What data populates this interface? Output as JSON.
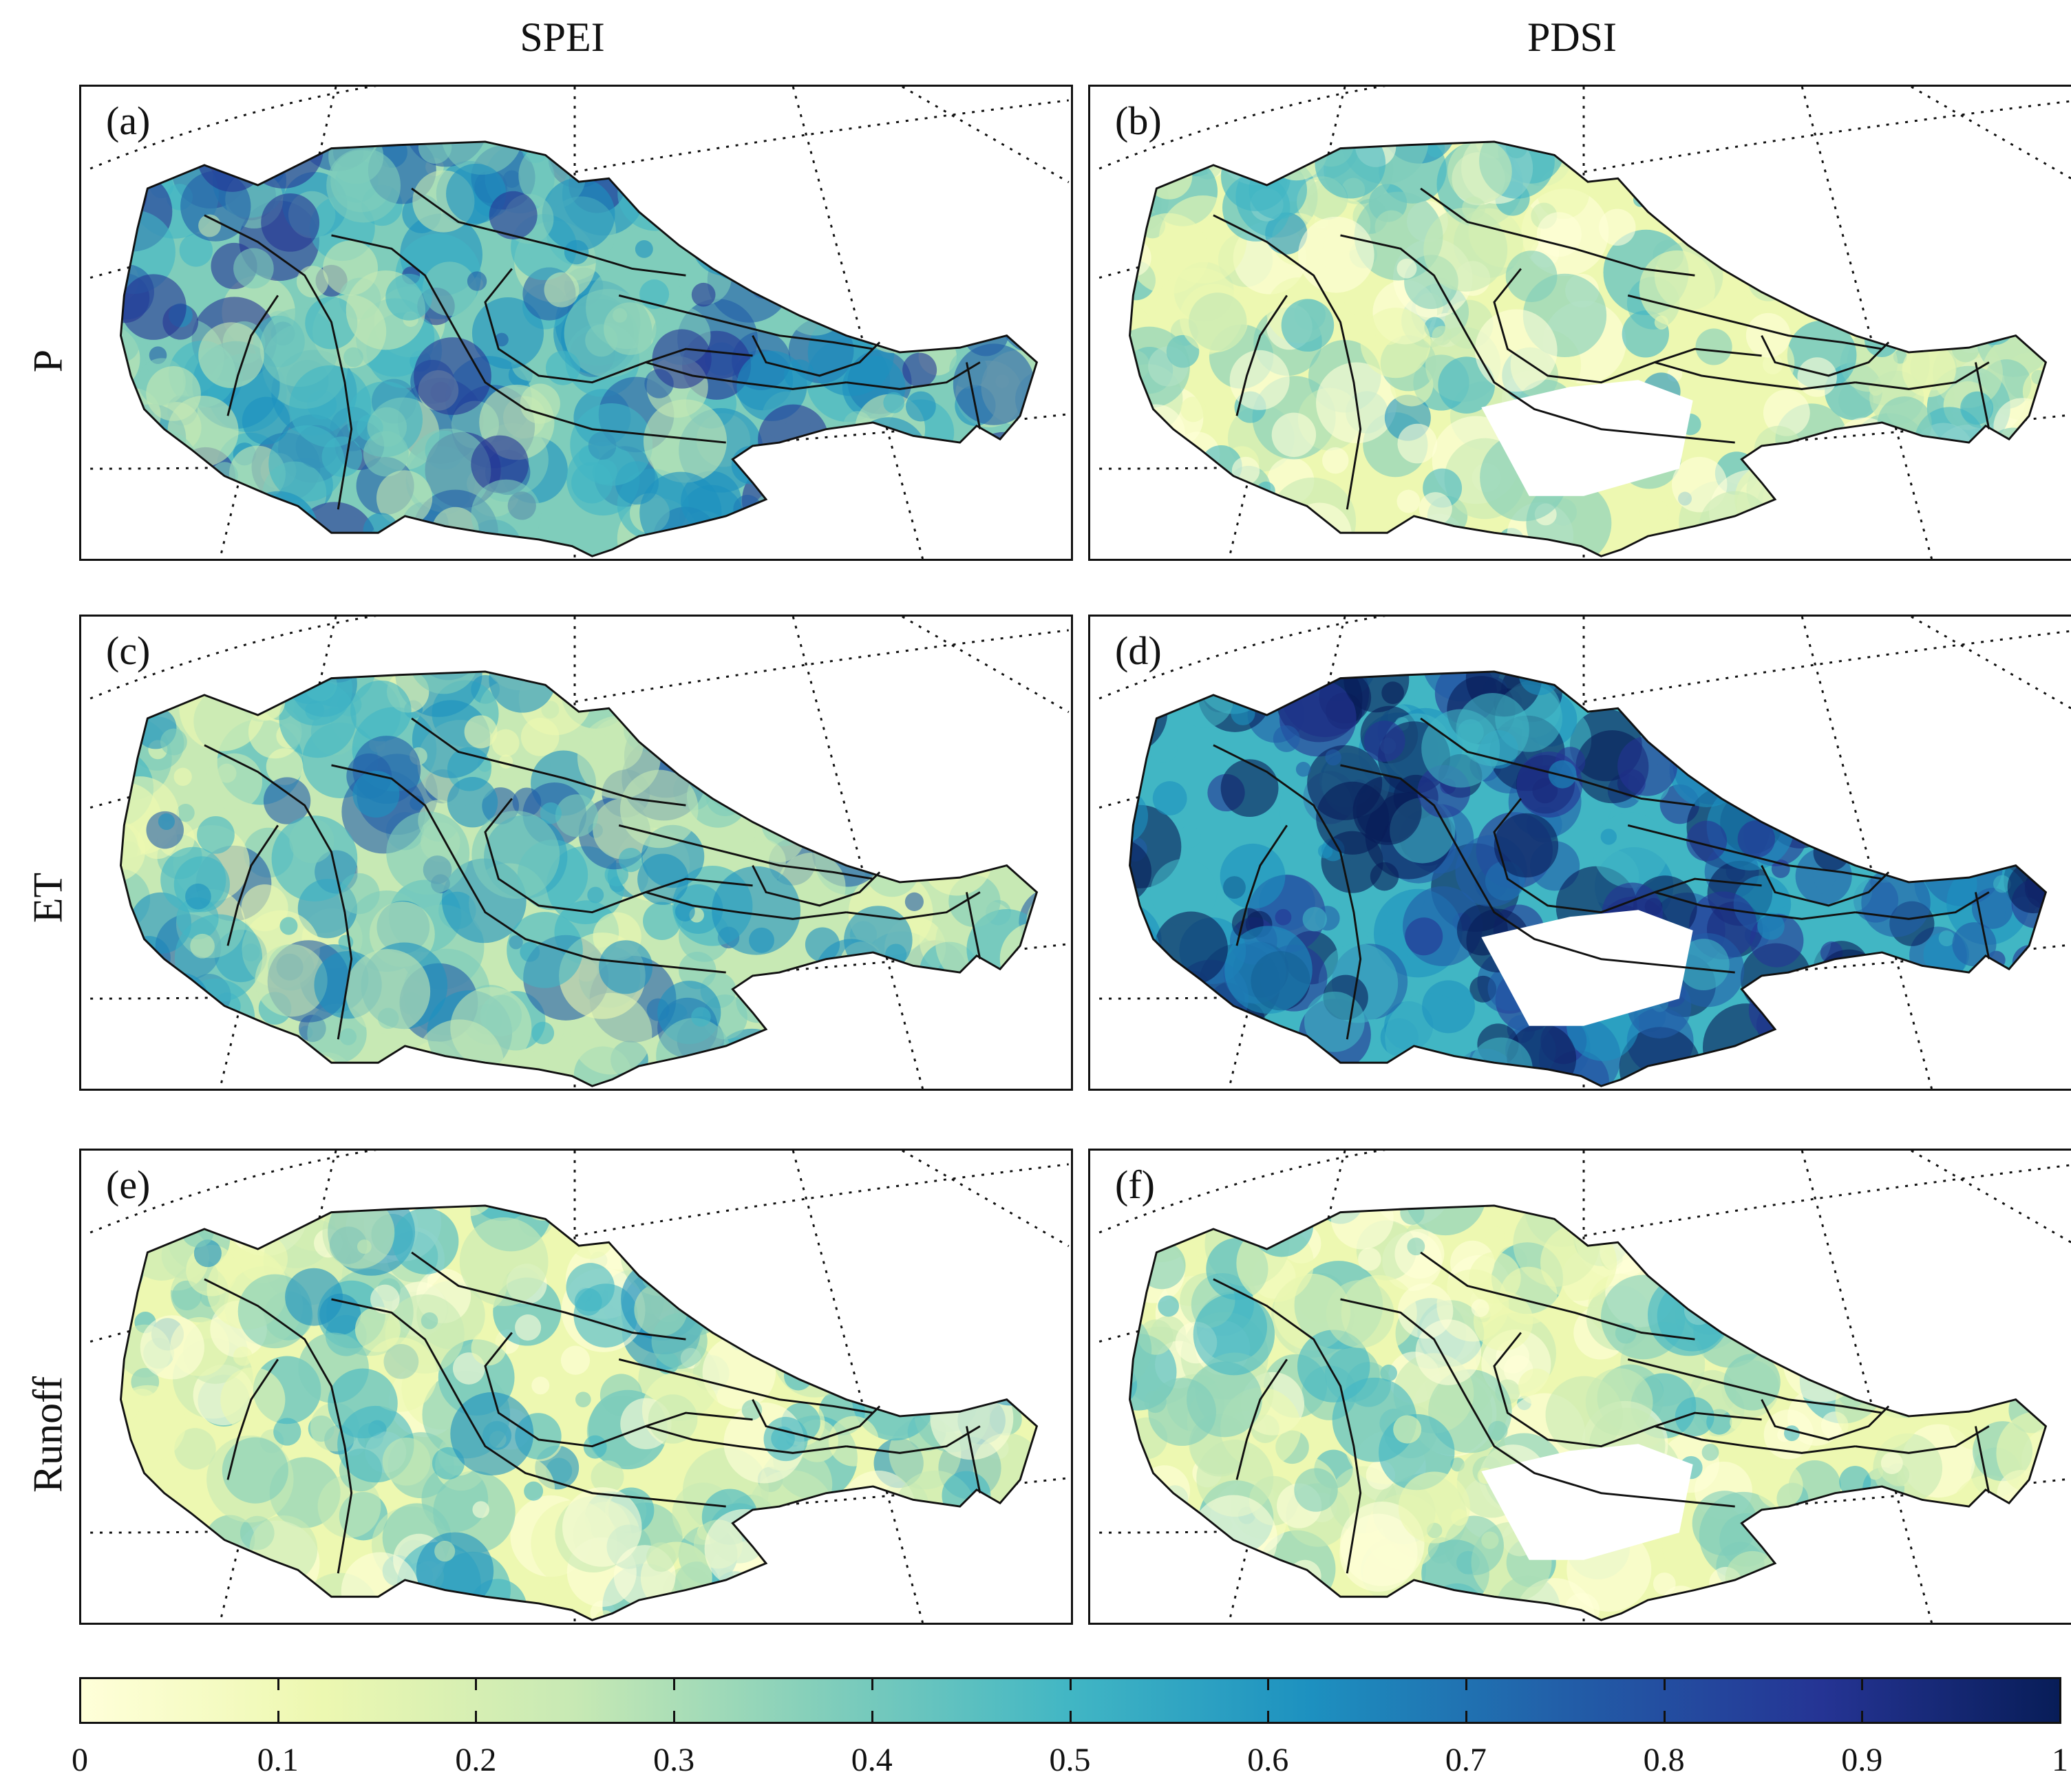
{
  "columns": [
    "SPEI",
    "PDSI"
  ],
  "rows": [
    "P",
    "ET",
    "Runoff"
  ],
  "panels": [
    {
      "label": "(a)",
      "column": "SPEI",
      "row": "P",
      "intensity": 0.55
    },
    {
      "label": "(b)",
      "column": "PDSI",
      "row": "P",
      "intensity": 0.22
    },
    {
      "label": "(c)",
      "column": "SPEI",
      "row": "ET",
      "intensity": 0.45
    },
    {
      "label": "(d)",
      "column": "PDSI",
      "row": "ET",
      "intensity": 0.8
    },
    {
      "label": "(e)",
      "column": "SPEI",
      "row": "Runoff",
      "intensity": 0.28
    },
    {
      "label": "(f)",
      "column": "PDSI",
      "row": "Runoff",
      "intensity": 0.22
    }
  ],
  "colorbar": {
    "ticks": [
      "0",
      "0.1",
      "0.2",
      "0.3",
      "0.4",
      "0.5",
      "0.6",
      "0.7",
      "0.8",
      "0.9",
      "1"
    ],
    "min": 0,
    "max": 1,
    "colors": [
      "#ffffd9",
      "#edf8b1",
      "#c7e9b4",
      "#7fcdbb",
      "#41b6c4",
      "#1d91c0",
      "#225ea8",
      "#253494",
      "#081d58"
    ]
  }
}
